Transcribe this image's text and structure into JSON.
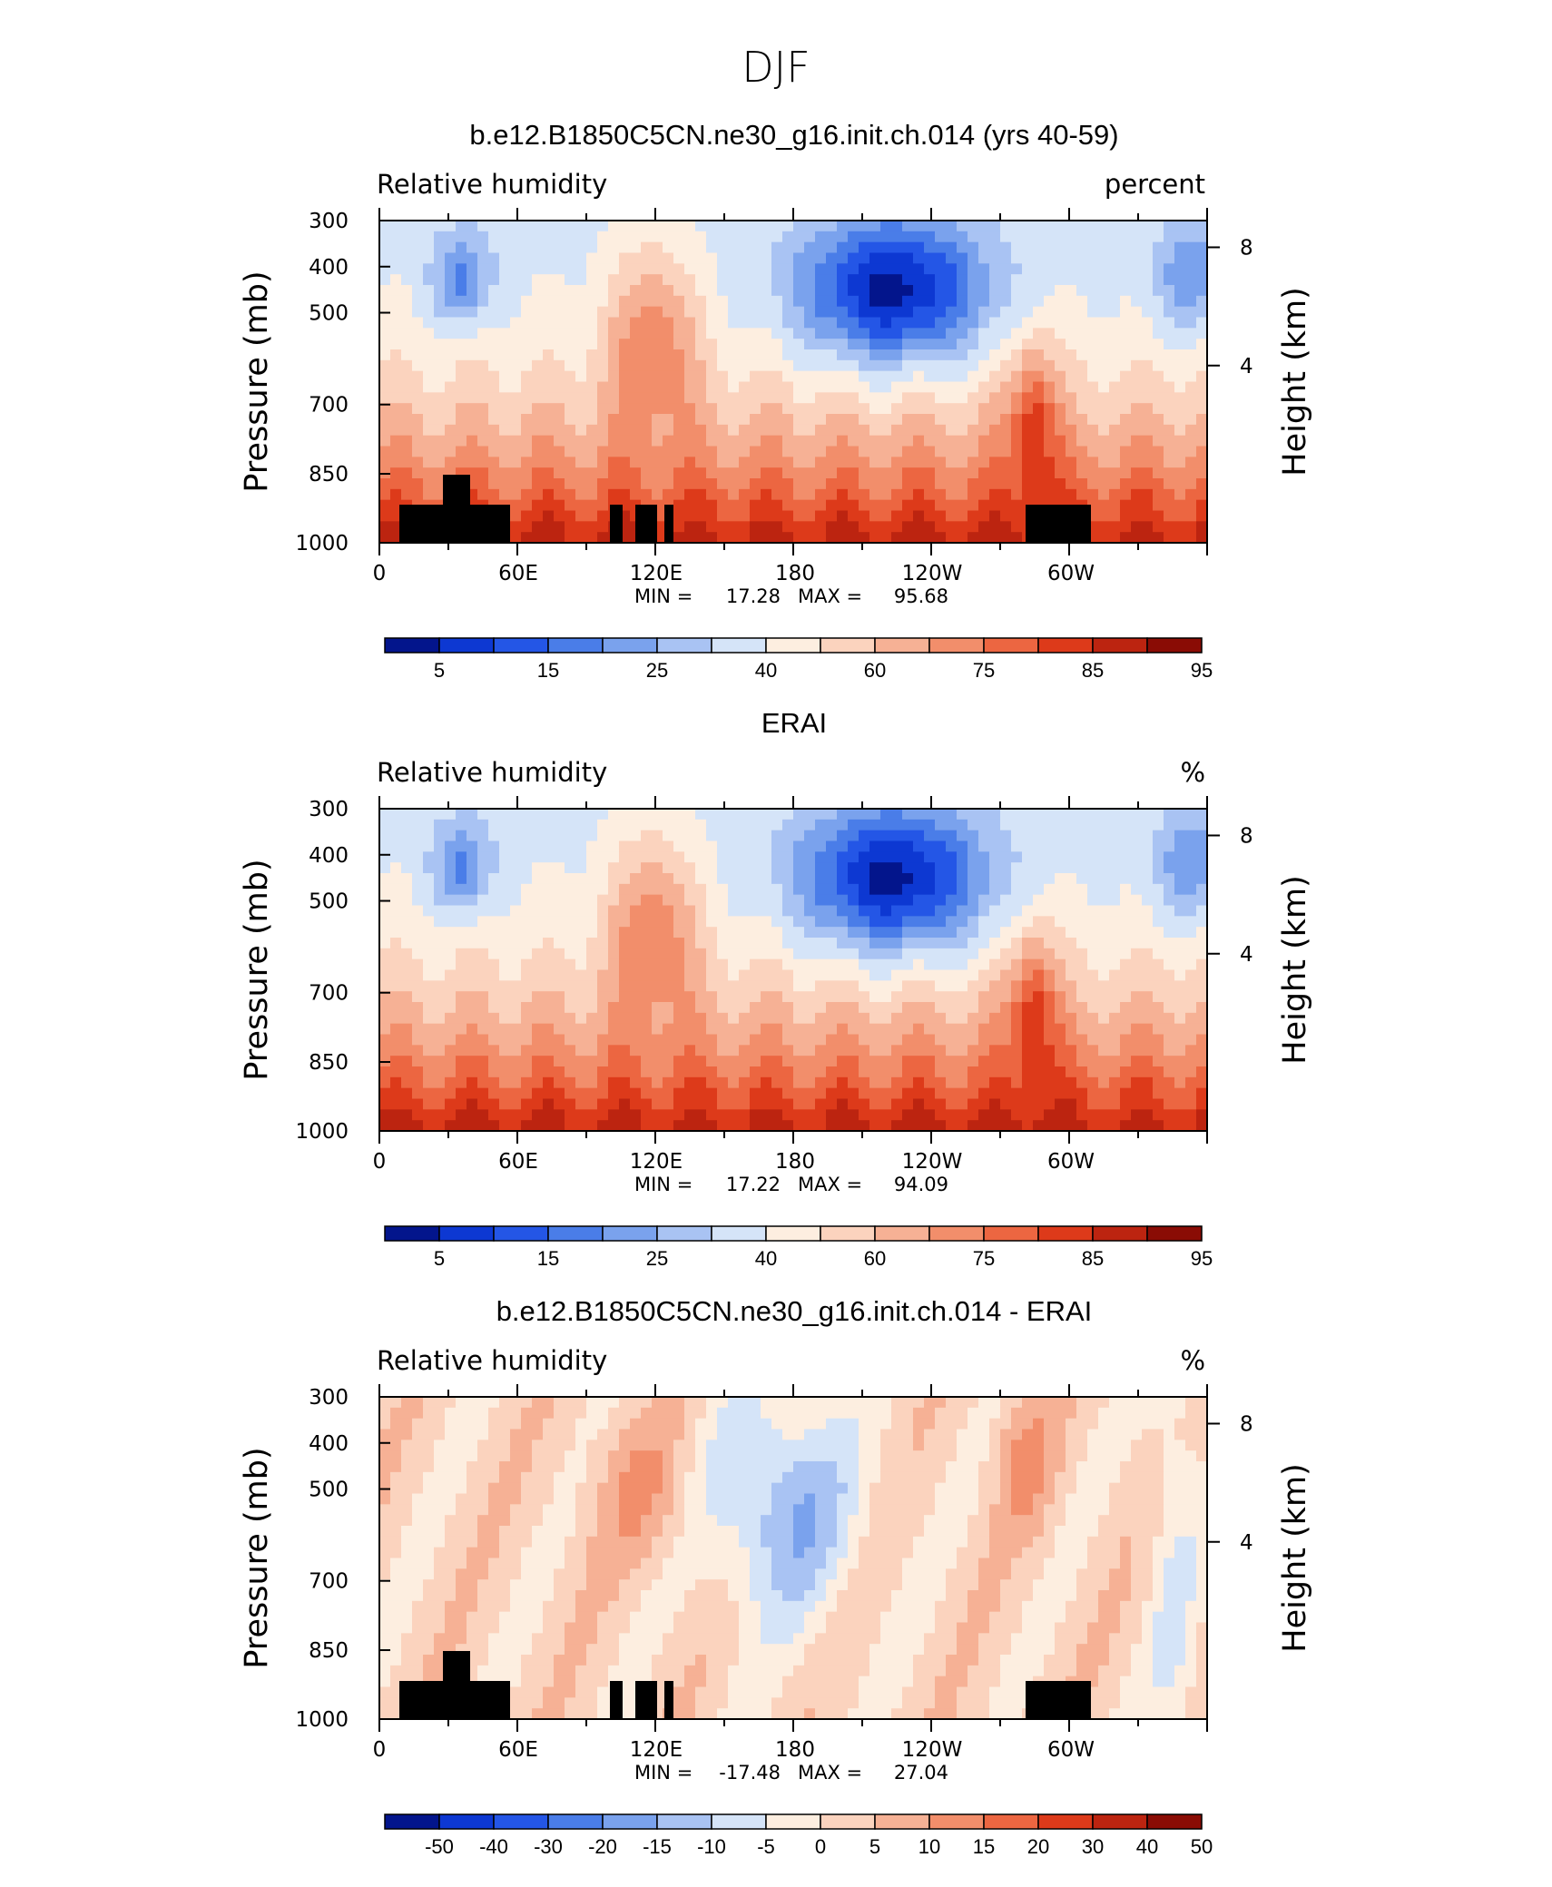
{
  "figure": {
    "title": "DJF"
  },
  "chart_data": [
    {
      "type": "heatmap",
      "title": "b.e12.B1850C5CN.ne30_g16.init.ch.014 (yrs 40-59)",
      "left_label": "Relative humidity",
      "right_label": "percent",
      "ylabel": "Pressure (mb)",
      "ylabel_right": "Height (km)",
      "x_ticks": [
        "0",
        "60E",
        "120E",
        "180",
        "120W",
        "60W"
      ],
      "y_ticks": [
        "300",
        "400",
        "500",
        "700",
        "850",
        "1000"
      ],
      "y_ticks_right": [
        "8",
        "4"
      ],
      "min_label": "MIN =",
      "min_value": "17.28",
      "max_label": "MAX =",
      "max_value": "95.68",
      "colorbar_levels": [
        "5",
        "15",
        "25",
        "40",
        "60",
        "75",
        "85",
        "95"
      ],
      "colors": [
        "#03158c",
        "#0d38d2",
        "#2456e6",
        "#4a7de8",
        "#7aa2ed",
        "#a9c3f3",
        "#d5e4f8",
        "#fdeee0",
        "#fbd3be",
        "#f6b195",
        "#f28e6b",
        "#ec6641",
        "#dd3a1a",
        "#bc2410",
        "#8a0c05"
      ]
    },
    {
      "type": "heatmap",
      "title": "ERAI",
      "left_label": "Relative humidity",
      "right_label": "%",
      "ylabel": "Pressure (mb)",
      "ylabel_right": "Height (km)",
      "x_ticks": [
        "0",
        "60E",
        "120E",
        "180",
        "120W",
        "60W"
      ],
      "y_ticks": [
        "300",
        "400",
        "500",
        "700",
        "850",
        "1000"
      ],
      "y_ticks_right": [
        "8",
        "4"
      ],
      "min_label": "MIN =",
      "min_value": "17.22",
      "max_label": "MAX =",
      "max_value": "94.09",
      "colorbar_levels": [
        "5",
        "15",
        "25",
        "40",
        "60",
        "75",
        "85",
        "95"
      ],
      "colors": [
        "#03158c",
        "#0d38d2",
        "#2456e6",
        "#4a7de8",
        "#7aa2ed",
        "#a9c3f3",
        "#d5e4f8",
        "#fdeee0",
        "#fbd3be",
        "#f6b195",
        "#f28e6b",
        "#ec6641",
        "#dd3a1a",
        "#bc2410",
        "#8a0c05"
      ]
    },
    {
      "type": "heatmap",
      "title": "b.e12.B1850C5CN.ne30_g16.init.ch.014 - ERAI",
      "left_label": "Relative humidity",
      "right_label": "%",
      "ylabel": "Pressure (mb)",
      "ylabel_right": "Height (km)",
      "x_ticks": [
        "0",
        "60E",
        "120E",
        "180",
        "120W",
        "60W"
      ],
      "y_ticks": [
        "300",
        "400",
        "500",
        "700",
        "850",
        "1000"
      ],
      "y_ticks_right": [
        "8",
        "4"
      ],
      "min_label": "MIN =",
      "min_value": "-17.48",
      "max_label": "MAX =",
      "max_value": "27.04",
      "colorbar_levels": [
        "-50",
        "-40",
        "-30",
        "-20",
        "-15",
        "-10",
        "-5",
        "0",
        "5",
        "10",
        "15",
        "20",
        "30",
        "40",
        "50"
      ],
      "colors": [
        "#03158c",
        "#0d38d2",
        "#2456e6",
        "#4a7de8",
        "#7aa2ed",
        "#a9c3f3",
        "#d5e4f8",
        "#fdeee0",
        "#fbd3be",
        "#f6b195",
        "#f28e6b",
        "#ec6641",
        "#dd3a1a",
        "#bc2410",
        "#8a0c05"
      ]
    }
  ]
}
